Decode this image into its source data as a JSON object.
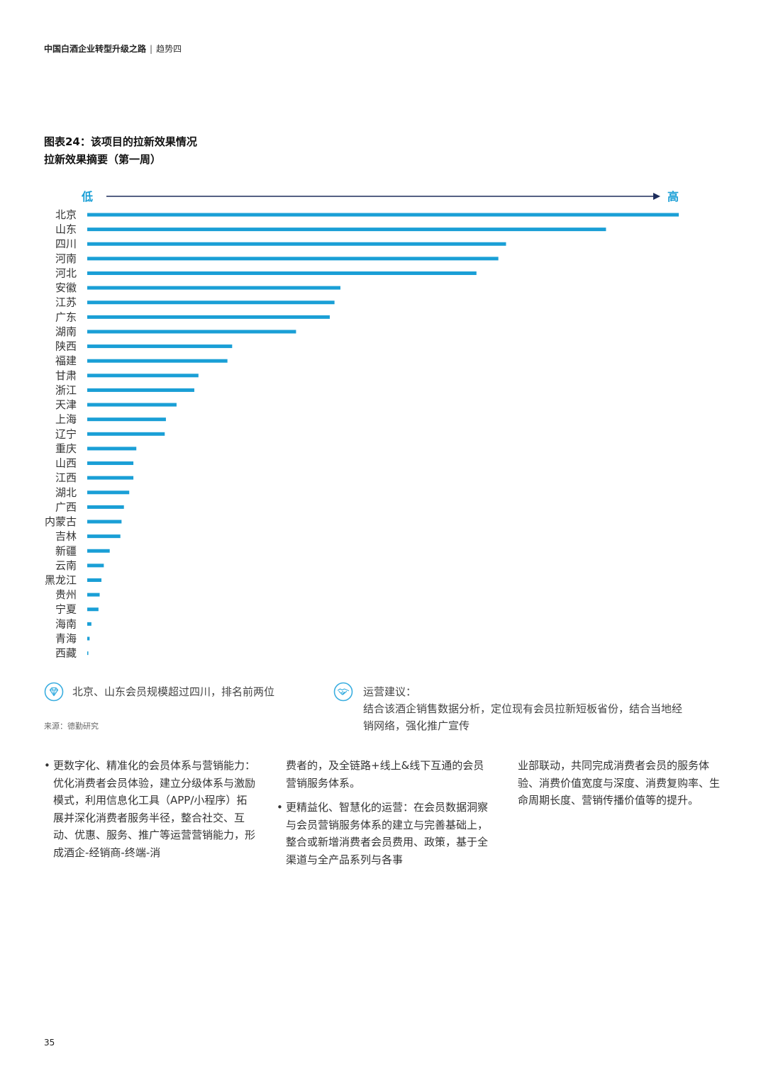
{
  "header": {
    "title": "中国白酒企业转型升级之路",
    "separator": "|",
    "section": "趋势四"
  },
  "figure": {
    "title_line1": "图表24：该项目的拉新效果情况",
    "title_line2": "拉新效果摘要（第一周）"
  },
  "colors": {
    "bar": "#1a9fd6",
    "axis_arrow": "#1d2d5c",
    "axis_label": "#1a9fd6",
    "icon_ring": "#3aaee0"
  },
  "chart_data": {
    "type": "bar",
    "orientation": "horizontal",
    "axis_low_label": "低",
    "axis_high_label": "高",
    "categories": [
      "北京",
      "山东",
      "四川",
      "河南",
      "河北",
      "安徽",
      "江苏",
      "广东",
      "湖南",
      "陕西",
      "福建",
      "甘肃",
      "浙江",
      "天津",
      "上海",
      "辽宁",
      "重庆",
      "山西",
      "江西",
      "湖北",
      "广西",
      "内蒙古",
      "吉林",
      "新疆",
      "云南",
      "黑龙江",
      "贵州",
      "宁夏",
      "海南",
      "青海",
      "西藏"
    ],
    "values": [
      100,
      87.7,
      70.8,
      69.5,
      65.8,
      42.8,
      41.8,
      41.0,
      35.3,
      24.5,
      23.7,
      18.8,
      18.1,
      15.1,
      13.3,
      13.1,
      8.3,
      7.8,
      7.8,
      7.1,
      6.2,
      5.8,
      5.6,
      3.8,
      2.8,
      2.4,
      2.1,
      1.9,
      0.7,
      0.4,
      0.15
    ],
    "value_unit": "relative (no scale printed)",
    "grid": false,
    "legend": "none"
  },
  "callouts": {
    "left": {
      "icon": "diamond-icon",
      "text": "北京、山东会员规模超过四川，排名前两位"
    },
    "right": {
      "icon": "handshake-icon",
      "heading": "运营建议：",
      "line1": "结合该酒企销售数据分析，定位现有会员拉新短板省份，结合当地经",
      "line2": "销网络，强化推广宣传"
    }
  },
  "source": "来源：德勤研究",
  "body": {
    "col1": {
      "bullet1": "更数字化、精准化的会员体系与营销能力：优化消费者会员体验，建立分级体系与激励模式，利用信息化工具（APP/小程序）拓展并深化消费者服务半径，整合社交、互动、优惠、服务、推广等运营营销能力，形成酒企-经销商-终端-消"
    },
    "col2": {
      "continuation": "费者的，及全链路+线上&线下互通的会员营销服务体系。",
      "bullet2": "更精益化、智慧化的运营：在会员数据洞察与会员营销服务体系的建立与完善基础上，整合或新增消费者会员费用、政策，基于全渠道与全产品系列与各事"
    },
    "col3": {
      "continuation": "业部联动，共同完成消费者会员的服务体验、消费价值宽度与深度、消费复购率、生命周期长度、营销传播价值等的提升。"
    }
  },
  "page_number": "35"
}
